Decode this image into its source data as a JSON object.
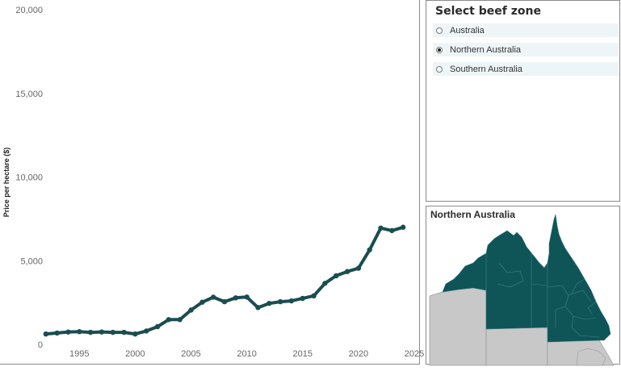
{
  "selector": {
    "title": "Select beef zone",
    "options": [
      {
        "label": "Australia",
        "selected": false
      },
      {
        "label": "Northern Australia",
        "selected": true
      },
      {
        "label": "Southern Australia",
        "selected": false
      }
    ]
  },
  "map": {
    "title": "Northern Australia",
    "highlight_color": "#0f5457",
    "other_color": "#c8c8c8"
  },
  "chart_data": {
    "type": "line",
    "xlabel": "",
    "ylabel": "Price per hectare ($)",
    "xlim": [
      1991,
      2025
    ],
    "ylim": [
      0,
      20000
    ],
    "xticks": [
      1995,
      2000,
      2005,
      2010,
      2015,
      2020,
      2025
    ],
    "yticks": [
      0,
      5000,
      10000,
      15000,
      20000
    ],
    "ytick_labels": [
      "0",
      "5,000",
      "10,000",
      "15,000",
      "20,000"
    ],
    "grid": false,
    "line_color": "#1a4d4f",
    "series": [
      {
        "x": [
          1992,
          1993,
          1994,
          1995,
          1996,
          1997,
          1998,
          1999,
          2000,
          2001,
          2002,
          2003,
          2004,
          2005,
          2006,
          2007,
          2008,
          2009,
          2010,
          2011,
          2012,
          2013,
          2014,
          2015,
          2016,
          2017,
          2018,
          2019,
          2020,
          2021,
          2022,
          2023,
          2024
        ],
        "y": [
          620,
          680,
          740,
          760,
          720,
          740,
          720,
          720,
          620,
          800,
          1060,
          1480,
          1480,
          2050,
          2520,
          2820,
          2550,
          2780,
          2830,
          2200,
          2450,
          2550,
          2600,
          2750,
          2900,
          3650,
          4100,
          4350,
          4550,
          5650,
          6950,
          6800,
          7000
        ]
      }
    ]
  }
}
